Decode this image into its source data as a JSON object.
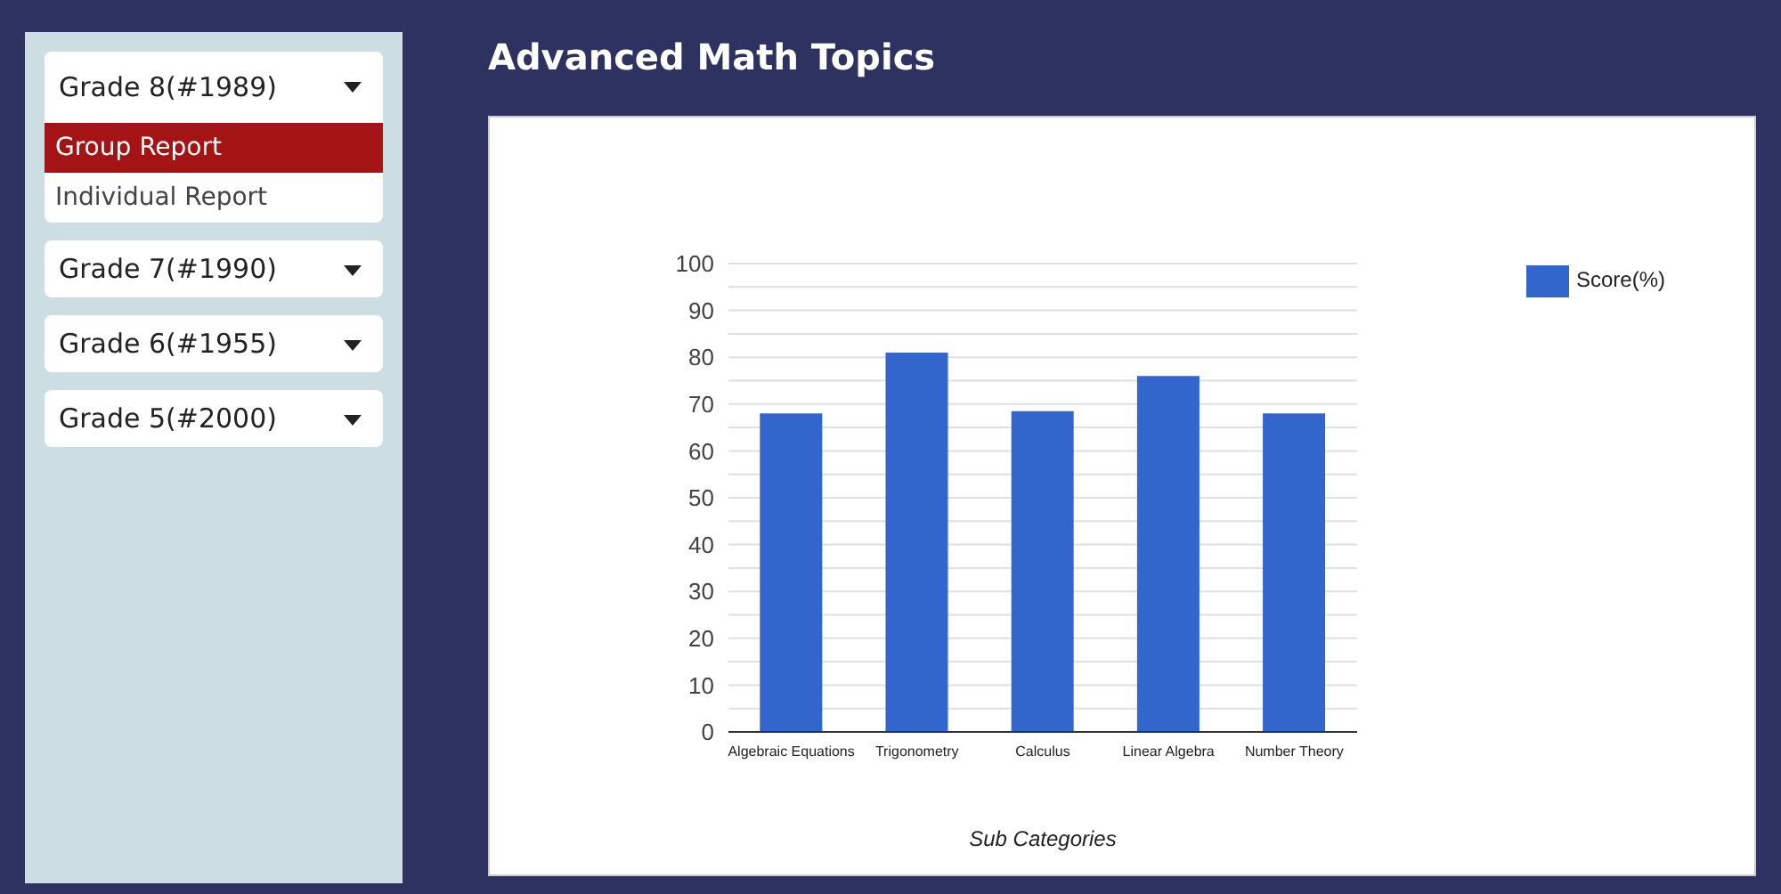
{
  "chart_data": [
    {
      "type": "other",
      "annotations": [
        "Grade 8(#1989)",
        "Group Report",
        "Individual Report",
        "Grade 7(#1990)",
        "Grade 6(#1955)",
        "Grade 5(#2000)"
      ]
    },
    {
      "type": "bar",
      "title": "Advanced Math Topics",
      "xlabel": "Sub Categories",
      "categories": [
        "Algebraic Equations",
        "Trigonometry",
        "Calculus",
        "Linear Algebra",
        "Number Theory"
      ],
      "series": [
        {
          "name": "Score(%)",
          "color": "#3366cc",
          "values": [
            68,
            81,
            68.5,
            76,
            68
          ]
        }
      ],
      "ylim": [
        0,
        100
      ],
      "yticks": [
        0,
        {
          "value": 5,
          "label": null
        },
        10,
        {
          "value": 15,
          "label": null
        },
        20,
        {
          "value": 25,
          "label": null
        },
        30,
        {
          "value": 35,
          "label": null
        },
        40,
        {
          "value": 45,
          "label": null
        },
        50,
        {
          "value": 55,
          "label": null
        },
        60,
        {
          "value": 65,
          "label": null
        },
        70,
        {
          "value": 75,
          "label": null
        },
        80,
        {
          "value": 85,
          "label": null
        },
        90,
        {
          "value": 95,
          "label": null
        },
        100
      ],
      "grid": "y",
      "legend": "top right"
    }
  ]
}
